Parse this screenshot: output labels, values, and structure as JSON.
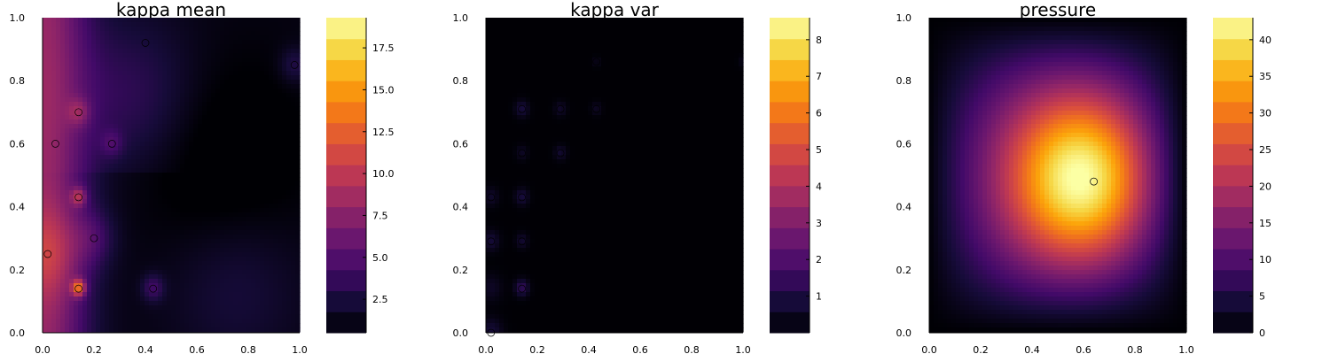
{
  "chart_data": [
    {
      "type": "heatmap",
      "title": "kappa mean",
      "xlabel": "",
      "ylabel": "",
      "xlim": [
        0,
        1
      ],
      "ylim": [
        0,
        1
      ],
      "xticks": [
        "0.0",
        "0.2",
        "0.4",
        "0.6",
        "0.8",
        "1.0"
      ],
      "yticks": [
        "0.0",
        "0.2",
        "0.4",
        "0.6",
        "0.8",
        "1.0"
      ],
      "colorbar": {
        "range": [
          0.5,
          19.3
        ],
        "ticks": [
          "2.5",
          "5.0",
          "7.5",
          "10.0",
          "12.5",
          "15.0",
          "17.5"
        ],
        "tick_values": [
          2.5,
          5,
          7.5,
          10,
          12.5,
          15,
          17.5
        ]
      },
      "colormap": "inferno",
      "features": [
        {
          "x": 0.14,
          "y": 0.14,
          "value": 19.0
        },
        {
          "x": 0.02,
          "y": 0.25,
          "value": 11.0
        },
        {
          "x": 0.14,
          "y": 0.43,
          "value": 15.0
        },
        {
          "x": 0.14,
          "y": 0.7,
          "value": 8.5
        },
        {
          "x": 0.27,
          "y": 0.6,
          "value": 7.0
        },
        {
          "x": 0.2,
          "y": 0.3,
          "value": 8.0
        },
        {
          "x": 0.43,
          "y": 0.14,
          "value": 6.0
        },
        {
          "x": 0.98,
          "y": 0.85,
          "value": 5.0
        },
        {
          "x": 0.05,
          "y": 0.6,
          "value": 6.5
        },
        {
          "x": 0.4,
          "y": 0.92,
          "value": 4.0
        }
      ]
    },
    {
      "type": "heatmap",
      "title": "kappa var",
      "xlabel": "",
      "ylabel": "",
      "xlim": [
        0,
        1
      ],
      "ylim": [
        0,
        1
      ],
      "xticks": [
        "0.0",
        "0.2",
        "0.4",
        "0.6",
        "0.8",
        "1.0"
      ],
      "yticks": [
        "0.0",
        "0.2",
        "0.4",
        "0.6",
        "0.8",
        "1.0"
      ],
      "colorbar": {
        "range": [
          0,
          8.6
        ],
        "ticks": [
          "1",
          "2",
          "3",
          "4",
          "5",
          "6",
          "7",
          "8"
        ],
        "tick_values": [
          1,
          2,
          3,
          4,
          5,
          6,
          7,
          8
        ]
      },
      "colormap": "inferno",
      "features": [
        {
          "x": 0.14,
          "y": 0.14,
          "value": 1.4
        },
        {
          "x": 0.02,
          "y": 0.29,
          "value": 0.8
        },
        {
          "x": 0.14,
          "y": 0.43,
          "value": 0.9
        },
        {
          "x": 0.14,
          "y": 0.29,
          "value": 0.7
        },
        {
          "x": 0.14,
          "y": 0.71,
          "value": 0.9
        },
        {
          "x": 0.29,
          "y": 0.71,
          "value": 0.6
        },
        {
          "x": 0.29,
          "y": 0.57,
          "value": 0.7
        },
        {
          "x": 0.43,
          "y": 0.71,
          "value": 0.5
        },
        {
          "x": 0.43,
          "y": 0.86,
          "value": 0.4
        },
        {
          "x": 0.14,
          "y": 0.57,
          "value": 0.5
        },
        {
          "x": 0.02,
          "y": 0.43,
          "value": 0.6
        },
        {
          "x": 0.02,
          "y": 0.0,
          "value": 0.8
        }
      ]
    },
    {
      "type": "heatmap",
      "title": "pressure",
      "xlabel": "",
      "ylabel": "",
      "xlim": [
        0,
        1
      ],
      "ylim": [
        0,
        1
      ],
      "xticks": [
        "0.0",
        "0.2",
        "0.4",
        "0.6",
        "0.8",
        "1.0"
      ],
      "yticks": [
        "0.0",
        "0.2",
        "0.4",
        "0.6",
        "0.8",
        "1.0"
      ],
      "colorbar": {
        "range": [
          0,
          43
        ],
        "ticks": [
          "0",
          "5",
          "10",
          "15",
          "20",
          "25",
          "30",
          "35",
          "40"
        ],
        "tick_values": [
          0,
          5,
          10,
          15,
          20,
          25,
          30,
          35,
          40
        ]
      },
      "colormap": "inferno",
      "features": [
        {
          "x": 0.64,
          "y": 0.48,
          "value": 42.0
        }
      ]
    }
  ]
}
